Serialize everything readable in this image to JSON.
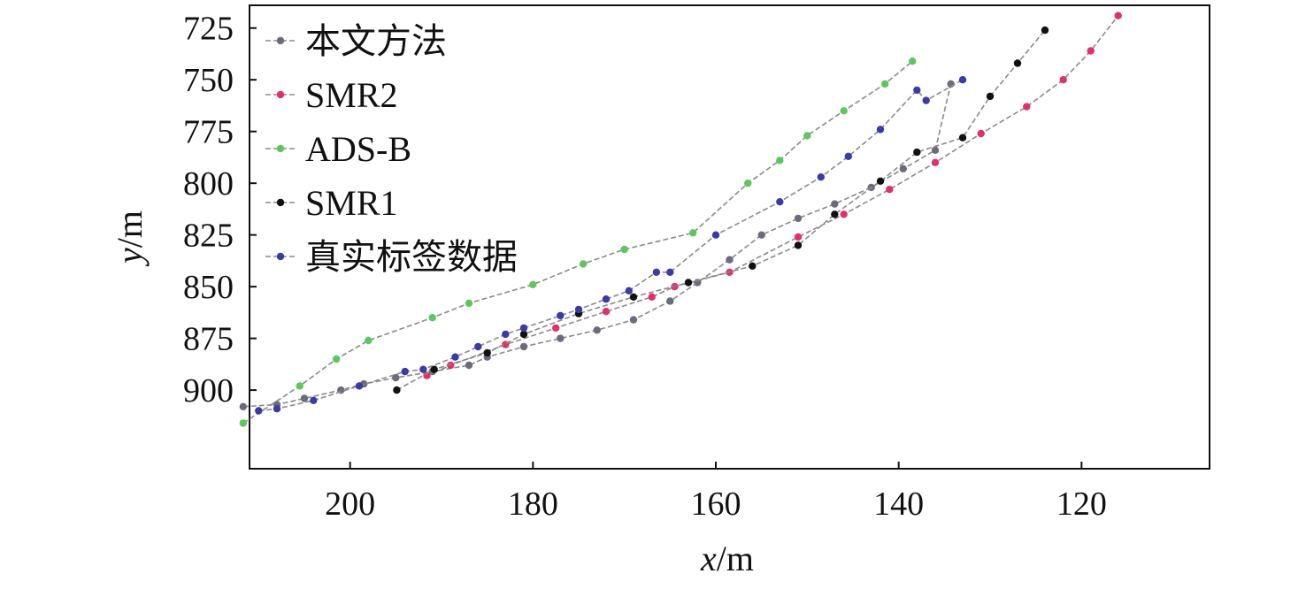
{
  "chart_data": {
    "type": "line",
    "xlabel": "x/m",
    "ylabel": "y/m",
    "x_reversed": true,
    "y_reversed": true,
    "xlim": [
      211,
      106
    ],
    "ylim": [
      714,
      938
    ],
    "x_ticks": [
      200,
      180,
      160,
      140,
      120
    ],
    "y_ticks": [
      725,
      750,
      775,
      800,
      825,
      850,
      875,
      900
    ],
    "grid": false,
    "legend_position": "top-left",
    "series": [
      {
        "name": "本文方法",
        "color": "#6b6b7e",
        "points": [
          [
            211.7,
            908
          ],
          [
            208,
            907
          ],
          [
            205,
            904
          ],
          [
            201,
            900
          ],
          [
            198.5,
            897
          ],
          [
            195,
            894
          ],
          [
            191,
            891
          ],
          [
            187,
            888
          ],
          [
            185,
            884
          ],
          [
            181,
            879
          ],
          [
            177,
            875
          ],
          [
            173,
            871
          ],
          [
            169,
            866
          ],
          [
            165,
            857
          ],
          [
            162,
            848
          ],
          [
            158.5,
            837
          ],
          [
            155,
            825
          ],
          [
            151,
            817
          ],
          [
            147,
            810
          ],
          [
            143,
            802
          ],
          [
            139.5,
            793
          ],
          [
            136,
            784
          ],
          [
            134.3,
            752
          ]
        ]
      },
      {
        "name": "SMR2",
        "color": "#e0316a",
        "points": [
          [
            191.6,
            893
          ],
          [
            189,
            888
          ],
          [
            183,
            878
          ],
          [
            177.5,
            870
          ],
          [
            172,
            862
          ],
          [
            167,
            855
          ],
          [
            164.5,
            850
          ],
          [
            158.5,
            843
          ],
          [
            151,
            826
          ],
          [
            146,
            815
          ],
          [
            141,
            803
          ],
          [
            136,
            790
          ],
          [
            131,
            776
          ],
          [
            126,
            763
          ],
          [
            122,
            750
          ],
          [
            119,
            736
          ],
          [
            116,
            719
          ]
        ]
      },
      {
        "name": "ADS-B",
        "color": "#5cc75c",
        "points": [
          [
            211.7,
            916
          ],
          [
            205.5,
            898
          ],
          [
            201.5,
            885
          ],
          [
            198,
            876
          ],
          [
            191,
            865
          ],
          [
            187,
            858
          ],
          [
            180,
            849
          ],
          [
            174.5,
            839
          ],
          [
            170,
            832
          ],
          [
            162.5,
            824
          ],
          [
            156.5,
            800
          ],
          [
            153,
            789
          ],
          [
            150,
            777
          ],
          [
            146,
            765
          ],
          [
            141.5,
            752
          ],
          [
            138.5,
            741
          ]
        ]
      },
      {
        "name": "SMR1",
        "color": "#111111",
        "points": [
          [
            194.9,
            900
          ],
          [
            190.8,
            890
          ],
          [
            185,
            882
          ],
          [
            181,
            873
          ],
          [
            175,
            863
          ],
          [
            169,
            855
          ],
          [
            163,
            848
          ],
          [
            156,
            840
          ],
          [
            151,
            830
          ],
          [
            147,
            815
          ],
          [
            142,
            799
          ],
          [
            138,
            785
          ],
          [
            133,
            778
          ],
          [
            130,
            758
          ],
          [
            127,
            742
          ],
          [
            124,
            726
          ]
        ]
      },
      {
        "name": "真实标签数据",
        "color": "#3a3aa8",
        "points": [
          [
            210,
            910
          ],
          [
            208,
            909
          ],
          [
            204,
            905
          ],
          [
            199,
            898
          ],
          [
            194,
            891
          ],
          [
            192,
            890
          ],
          [
            188.5,
            884
          ],
          [
            186,
            879
          ],
          [
            183,
            873
          ],
          [
            181,
            870
          ],
          [
            177,
            864
          ],
          [
            175,
            861
          ],
          [
            172,
            856
          ],
          [
            169.5,
            852
          ],
          [
            166.5,
            843
          ],
          [
            165,
            843
          ],
          [
            160,
            825
          ],
          [
            153,
            809
          ],
          [
            148.5,
            797
          ],
          [
            145.5,
            787
          ],
          [
            142,
            774
          ],
          [
            138,
            755
          ],
          [
            137,
            760
          ],
          [
            133,
            750
          ]
        ]
      }
    ]
  }
}
